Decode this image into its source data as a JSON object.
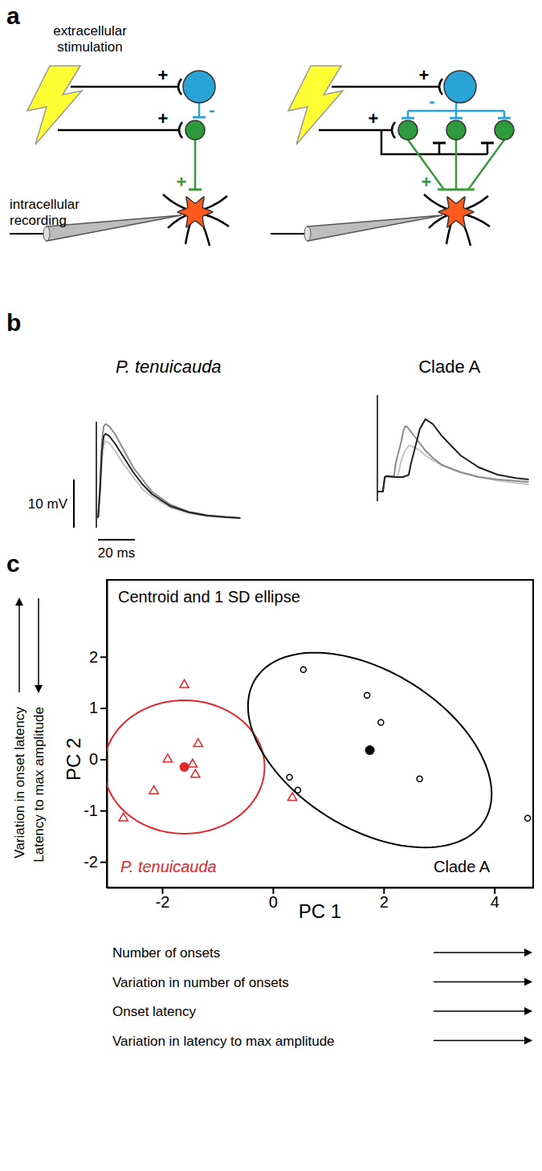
{
  "panel_labels": [
    "a",
    "b",
    "c"
  ],
  "diagram": {
    "stimulation_label": [
      "extracellular",
      "stimulation"
    ],
    "recording_label": [
      "intracellular",
      "recording"
    ],
    "excitatory_sign": "+",
    "inhibitory_sign": "-"
  },
  "chart_data": [
    {
      "type": "line",
      "title": "P. tenuicauda",
      "x": [
        0,
        1,
        2,
        3,
        4,
        5,
        7,
        10,
        15,
        20,
        25,
        30,
        40,
        50,
        60,
        70,
        78
      ],
      "series": [
        {
          "color": "#c2c2c2",
          "values": [
            0,
            0.3,
            5,
            12,
            15,
            16,
            15.5,
            14,
            11,
            8.5,
            6,
            4.5,
            2.2,
            1,
            0.4,
            0.1,
            0
          ]
        },
        {
          "color": "#8c8c8c",
          "values": [
            0,
            0.3,
            7,
            16,
            19,
            19.5,
            19,
            17.5,
            14,
            10.5,
            8,
            5.5,
            2.8,
            1.3,
            0.6,
            0.2,
            0
          ]
        },
        {
          "color": "#222222",
          "values": [
            0,
            0.3,
            6,
            14,
            17,
            17.5,
            17,
            15.5,
            12.5,
            9.5,
            7,
            5,
            2.5,
            1.2,
            0.5,
            0.2,
            0
          ]
        }
      ],
      "xlim": [
        0,
        85
      ],
      "ylim": [
        -2,
        20
      ],
      "tick_labels": false,
      "stimulus": 0,
      "scale_bars": [
        {
          "value": 10,
          "label": "10 mV"
        },
        {
          "value": 20,
          "label": "20 ms"
        }
      ]
    },
    {
      "type": "line",
      "title": "Clade A",
      "x": [
        0,
        3,
        4,
        5,
        9,
        10,
        11,
        13,
        14,
        15,
        16,
        17,
        18,
        19,
        21,
        23,
        26,
        30,
        35,
        45,
        55,
        65,
        75,
        82
      ],
      "series": [
        {
          "color": "#c2c2c2",
          "values": [
            0,
            0,
            3,
            3,
            3,
            3,
            3.2,
            6.5,
            7.5,
            8.5,
            9,
            9.5,
            9.5,
            9.3,
            9,
            8.5,
            7.5,
            6.5,
            5.5,
            4,
            3,
            2.3,
            1.8,
            1.5
          ]
        },
        {
          "color": "#8c8c8c",
          "values": [
            0,
            0,
            3,
            3.2,
            3.2,
            6,
            7.5,
            10.5,
            12.5,
            13.5,
            13.5,
            13,
            12.5,
            12,
            11,
            10,
            8.5,
            7,
            5.5,
            4,
            3,
            2.5,
            2.2,
            2
          ]
        },
        {
          "color": "#222222",
          "values": [
            0,
            0,
            3,
            3.2,
            3,
            3,
            3,
            3,
            3,
            3.2,
            3.3,
            3.5,
            5.5,
            7,
            10,
            13,
            15,
            14,
            11.5,
            7.5,
            5,
            3.5,
            2.8,
            2.5
          ]
        }
      ],
      "xlim": [
        0,
        85
      ],
      "ylim": [
        -2,
        20
      ],
      "tick_labels": false,
      "stimulus": 0
    },
    {
      "type": "scatter",
      "title": "Centroid and 1 SD ellipse",
      "x_label": "PC 1",
      "y_label": "PC 2",
      "xlim": [
        -3,
        4.7
      ],
      "ylim": [
        -2.5,
        3.5
      ],
      "xticks": [
        -2,
        0,
        2,
        4
      ],
      "yticks": [
        -2,
        -1,
        0,
        1,
        2
      ],
      "series": [
        {
          "name": "P. tenuicauda",
          "color": "#e3262b",
          "marker": "triangle",
          "x": [
            -1.6,
            -1.35,
            -1.9,
            -1.45,
            -1.4,
            -2.15,
            -2.7,
            0.35
          ],
          "values": [
            1.45,
            0.3,
            0,
            -0.1,
            -0.3,
            -0.62,
            -1.15,
            -0.75
          ],
          "centroid": {
            "x": -1.6,
            "y": -0.15
          },
          "ellipse": {
            "sd_x": 1.45,
            "sd_y": 1.3,
            "r": 0
          }
        },
        {
          "name": "Clade A",
          "color": "#000000",
          "marker": "circle",
          "x": [
            0.55,
            1.7,
            1.95,
            0.3,
            0.45,
            2.65,
            4.6
          ],
          "values": [
            1.75,
            1.25,
            0.72,
            -0.35,
            -0.6,
            -0.38,
            -1.15
          ],
          "centroid": {
            "x": 1.75,
            "y": 0.18
          },
          "ellipse": {
            "sd_x": 2.2,
            "sd_y": 1.9,
            "r": -0.45
          }
        }
      ],
      "x_descriptions": [
        {
          "text": "Number of onsets",
          "direction": "right"
        },
        {
          "text": "Variation in number of onsets",
          "direction": "right"
        },
        {
          "text": "Onset latency",
          "direction": "right"
        },
        {
          "text": "Variation in latency to max amplitude",
          "direction": "right"
        }
      ],
      "y_descriptions": [
        {
          "text": "Variation in onset latency",
          "direction": "up"
        },
        {
          "text": "Latency to max amplitude",
          "direction": "down"
        }
      ]
    }
  ]
}
